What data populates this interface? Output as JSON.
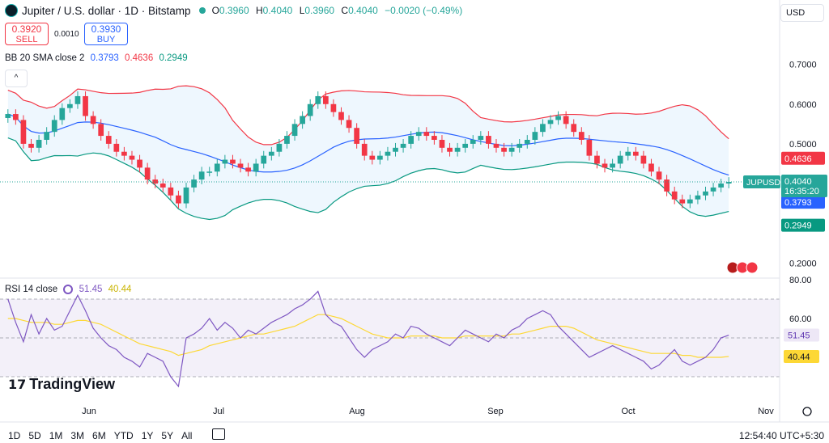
{
  "header": {
    "title": "Jupiter / U.S. dollar · 1D · Bitstamp",
    "ohlc": [
      {
        "k": "O",
        "v": "0.3960"
      },
      {
        "k": "H",
        "v": "0.4040"
      },
      {
        "k": "L",
        "v": "0.3960"
      },
      {
        "k": "C",
        "v": "0.4040"
      },
      {
        "k": "",
        "v": "−0.0020 (−0.49%)"
      }
    ],
    "currency": "USD"
  },
  "trade": {
    "sell_price": "0.3920",
    "sell_label": "SELL",
    "spread": "0.0010",
    "buy_price": "0.3930",
    "buy_label": "BUY"
  },
  "bb": {
    "label": "BB 20 SMA close 2",
    "basis": "0.3793",
    "upper": "0.4636",
    "lower": "0.2949"
  },
  "rsi": {
    "label": "RSI 14 close",
    "value": "51.45",
    "ma": "40.44"
  },
  "price_tags": {
    "symbol": "JUPUSD",
    "last": "0.4040",
    "countdown": "16:35:20"
  },
  "bottom": {
    "timeframes": [
      "1D",
      "5D",
      "1M",
      "3M",
      "6M",
      "YTD",
      "1Y",
      "5Y",
      "All"
    ],
    "clock": "12:54:40 UTC+5:30",
    "brand": "TradingView"
  },
  "colors": {
    "up": "#26a69a",
    "down": "#f23645",
    "bb_upper": "#f23645",
    "bb_basis": "#2962ff",
    "bb_lower": "#089981",
    "rsi_line": "#7e57c2",
    "rsi_ma": "#fdd835"
  },
  "chart_data": [
    {
      "type": "candlestick",
      "title": "Jupiter / U.S. dollar · 1D · Bitstamp",
      "x_labels": [
        "Jun",
        "Jul",
        "Aug",
        "Sep",
        "Oct",
        "Nov"
      ],
      "y_ticks": [
        0.7,
        0.6,
        0.5,
        0.3,
        0.2
      ],
      "ylim": [
        0.17,
        0.74
      ],
      "closes": [
        0.575,
        0.56,
        0.5,
        0.49,
        0.51,
        0.53,
        0.56,
        0.59,
        0.6,
        0.62,
        0.57,
        0.55,
        0.52,
        0.5,
        0.48,
        0.47,
        0.46,
        0.44,
        0.41,
        0.4,
        0.39,
        0.37,
        0.35,
        0.39,
        0.41,
        0.43,
        0.43,
        0.45,
        0.46,
        0.45,
        0.44,
        0.43,
        0.45,
        0.47,
        0.48,
        0.5,
        0.52,
        0.55,
        0.57,
        0.6,
        0.62,
        0.6,
        0.58,
        0.56,
        0.54,
        0.5,
        0.47,
        0.46,
        0.47,
        0.48,
        0.49,
        0.5,
        0.52,
        0.53,
        0.52,
        0.51,
        0.49,
        0.48,
        0.49,
        0.5,
        0.51,
        0.52,
        0.5,
        0.49,
        0.48,
        0.49,
        0.5,
        0.51,
        0.53,
        0.55,
        0.56,
        0.57,
        0.55,
        0.53,
        0.51,
        0.47,
        0.45,
        0.44,
        0.45,
        0.47,
        0.48,
        0.47,
        0.45,
        0.43,
        0.41,
        0.38,
        0.36,
        0.35,
        0.36,
        0.37,
        0.38,
        0.39,
        0.4,
        0.404
      ],
      "bb": {
        "basis": 0.3793,
        "upper": 0.4636,
        "lower": 0.2949
      },
      "last_price": 0.404
    },
    {
      "type": "line",
      "title": "RSI 14 close",
      "y_ticks": [
        80,
        60,
        40
      ],
      "ylim": [
        20,
        80
      ],
      "bands": [
        70,
        50,
        30
      ],
      "series": [
        {
          "name": "RSI",
          "values": [
            70,
            58,
            48,
            62,
            52,
            60,
            54,
            56,
            64,
            72,
            64,
            55,
            50,
            46,
            44,
            40,
            38,
            35,
            42,
            40,
            38,
            30,
            25,
            50,
            52,
            55,
            60,
            54,
            58,
            55,
            50,
            54,
            52,
            55,
            58,
            60,
            62,
            65,
            67,
            70,
            74,
            62,
            58,
            56,
            50,
            44,
            40,
            44,
            46,
            48,
            52,
            50,
            56,
            55,
            52,
            50,
            48,
            46,
            50,
            54,
            52,
            50,
            48,
            52,
            50,
            54,
            56,
            60,
            62,
            64,
            62,
            56,
            52,
            48,
            44,
            40,
            42,
            44,
            46,
            44,
            42,
            40,
            38,
            34,
            36,
            40,
            44,
            38,
            36,
            38,
            40,
            44,
            50,
            51.45
          ]
        },
        {
          "name": "RSI MA",
          "values": [
            60,
            60,
            59,
            58,
            58,
            58,
            57,
            57,
            58,
            59,
            59,
            58,
            57,
            55,
            53,
            51,
            49,
            47,
            46,
            45,
            44,
            43,
            41,
            42,
            43,
            44,
            46,
            47,
            48,
            49,
            50,
            51,
            52,
            52,
            53,
            54,
            55,
            56,
            58,
            60,
            62,
            62,
            61,
            60,
            58,
            56,
            54,
            52,
            51,
            50,
            50,
            50,
            51,
            51,
            51,
            51,
            50,
            50,
            50,
            51,
            51,
            51,
            51,
            51,
            51,
            52,
            52,
            53,
            54,
            55,
            56,
            56,
            56,
            55,
            53,
            51,
            49,
            48,
            47,
            46,
            45,
            44,
            43,
            42,
            42,
            42,
            42,
            41,
            41,
            40,
            40,
            40,
            40,
            40.44
          ]
        }
      ]
    }
  ]
}
